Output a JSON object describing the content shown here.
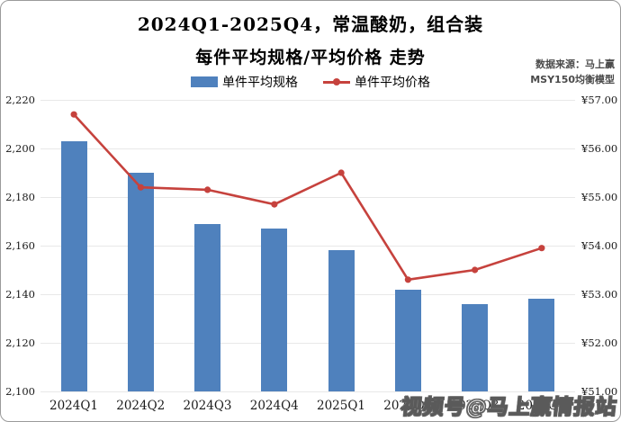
{
  "title": {
    "line1": "2024Q1-2025Q4，常温酸奶，组合装",
    "line2": "每件平均规格/平均价格 走势"
  },
  "source": {
    "line1": "数据来源：马上赢",
    "line2": "MSY150均衡模型"
  },
  "legend": [
    {
      "label": "单件平均规格",
      "type": "bar",
      "color": "#4f81bd"
    },
    {
      "label": "单件平均价格",
      "type": "line",
      "color": "#c6423d"
    }
  ],
  "watermark": "视频号@马上赢情报站",
  "colors": {
    "bar": "#4f81bd",
    "line": "#c6423d",
    "grid": "#e8e8e8"
  },
  "chart_data": {
    "type": "bar",
    "subtype": "combo-bar-line-dual-axis",
    "title": "2024Q1-2025Q4，常温酸奶，组合装 每件平均规格/平均价格 走势",
    "categories": [
      "2024Q1",
      "2024Q2",
      "2024Q3",
      "2024Q4",
      "2025Q1",
      "2025Q2",
      "2025Q3",
      "2025Q4"
    ],
    "series": [
      {
        "name": "单件平均规格",
        "type": "bar",
        "axis": "left",
        "color": "#4f81bd",
        "values": [
          2203,
          2190,
          2169,
          2167,
          2158,
          2142,
          2136,
          2138
        ]
      },
      {
        "name": "单件平均价格",
        "type": "line",
        "axis": "right",
        "color": "#c6423d",
        "values": [
          56.7,
          55.2,
          55.15,
          54.85,
          55.5,
          53.3,
          53.5,
          53.95
        ]
      }
    ],
    "left_axis": {
      "min": 2100,
      "max": 2220,
      "step": 20,
      "tick_labels": [
        "2,220",
        "2,200",
        "2,180",
        "2,160",
        "2,140",
        "2,120",
        "2,100"
      ]
    },
    "right_axis": {
      "min": 51,
      "max": 57,
      "step": 1,
      "tick_labels": [
        "¥57.00",
        "¥56.00",
        "¥55.00",
        "¥54.00",
        "¥53.00",
        "¥52.00",
        "¥51.00"
      ]
    },
    "grid": "horizontal",
    "legend_position": "top-center"
  }
}
